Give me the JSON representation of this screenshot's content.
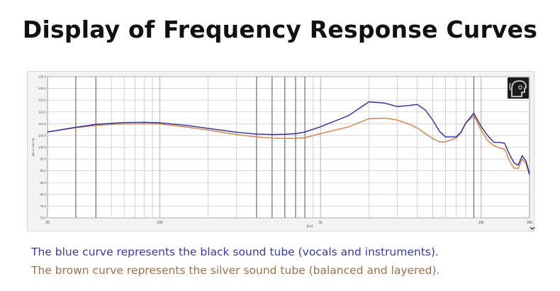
{
  "title": "Display of Frequency Response Curves",
  "captions": {
    "blue": "The blue curve represents the black sound tube (vocals and instruments).",
    "brown": "The brown curve represents the silver sound tube (balanced and layered)."
  },
  "colors": {
    "blue_series": "#2a2a9a",
    "brown_series": "#d0804a",
    "blue_caption": "#3a3a9e",
    "brown_caption": "#a0704a",
    "grid": "#bdbdbd",
    "major_grid": "#444444"
  },
  "chart_data": {
    "type": "line",
    "xscale": "log",
    "xlim": [
      20,
      20000
    ],
    "ylim": [
      70,
      130
    ],
    "xlabel": "[Hz]",
    "ylabel": "[dB re 20u Pa]",
    "grid": true,
    "icon": "listener-head-icon",
    "xtick_labels": [
      {
        "x": 20,
        "label": "20"
      },
      {
        "x": 100,
        "label": "100"
      },
      {
        "x": 1000,
        "label": "1k"
      },
      {
        "x": 10000,
        "label": "10k"
      },
      {
        "x": 20000,
        "label": "20k"
      }
    ],
    "yticks": [
      70,
      75,
      80,
      85,
      90,
      95,
      100,
      105,
      110,
      115,
      120,
      125,
      130
    ],
    "ytick_labels": [
      "70.0",
      "75.0",
      "80.0",
      "85.0",
      "90.0",
      "95.0",
      "100.0",
      "105.0",
      "110.0",
      "115.0",
      "120.0",
      "125.0",
      "130.0"
    ],
    "x_minor_grid": [
      30,
      40,
      50,
      60,
      70,
      80,
      90,
      200,
      300,
      400,
      500,
      600,
      700,
      800,
      900,
      2000,
      3000,
      4000,
      5000,
      6000,
      7000,
      8000,
      9000
    ],
    "x_major_grid": [
      30,
      40,
      400,
      500,
      600,
      700,
      800,
      9000
    ],
    "series": [
      {
        "color_key": "blue_series",
        "x": [
          20,
          30,
          40,
          50,
          60,
          80,
          100,
          150,
          200,
          300,
          400,
          500,
          600,
          700,
          800,
          1000,
          1500,
          2000,
          2500,
          3000,
          3500,
          4000,
          4500,
          5000,
          5500,
          6000,
          7000,
          7500,
          8000,
          9000,
          10000,
          11000,
          12000,
          13000,
          14000,
          15000,
          16000,
          17000,
          18000,
          19000,
          20000
        ],
        "y": [
          106.5,
          108.5,
          109.7,
          110.2,
          110.5,
          110.6,
          110.4,
          109.2,
          108.0,
          106.4,
          105.6,
          105.4,
          105.5,
          105.8,
          106.5,
          108.7,
          113.5,
          119.3,
          118.8,
          117.3,
          117.7,
          118.2,
          115.8,
          111.5,
          106.8,
          104.4,
          104.4,
          106.5,
          110.2,
          114.5,
          108.8,
          104.9,
          102.1,
          102.1,
          101.7,
          97.0,
          93.4,
          92.4,
          96.4,
          94.2,
          88.7
        ]
      },
      {
        "color_key": "brown_series",
        "x": [
          20,
          30,
          40,
          50,
          60,
          80,
          100,
          150,
          200,
          300,
          400,
          500,
          600,
          700,
          800,
          1000,
          1500,
          2000,
          2500,
          3000,
          3500,
          4000,
          4500,
          5000,
          5500,
          6000,
          7000,
          7500,
          8000,
          9000,
          10000,
          11000,
          12000,
          13000,
          14000,
          15000,
          16000,
          17000,
          18000,
          19000,
          20000
        ],
        "y": [
          106.5,
          108.3,
          109.3,
          109.7,
          109.9,
          110.0,
          109.9,
          108.5,
          107.3,
          105.4,
          104.4,
          103.9,
          103.8,
          103.8,
          104.1,
          105.8,
          108.7,
          112.1,
          112.4,
          111.6,
          110.0,
          108.2,
          105.8,
          103.7,
          102.3,
          102.3,
          103.9,
          106.2,
          110.2,
          113.4,
          107.3,
          102.8,
          100.7,
          99.7,
          99.2,
          94.2,
          91.2,
          91.0,
          95.0,
          93.2,
          88.0
        ]
      }
    ]
  }
}
